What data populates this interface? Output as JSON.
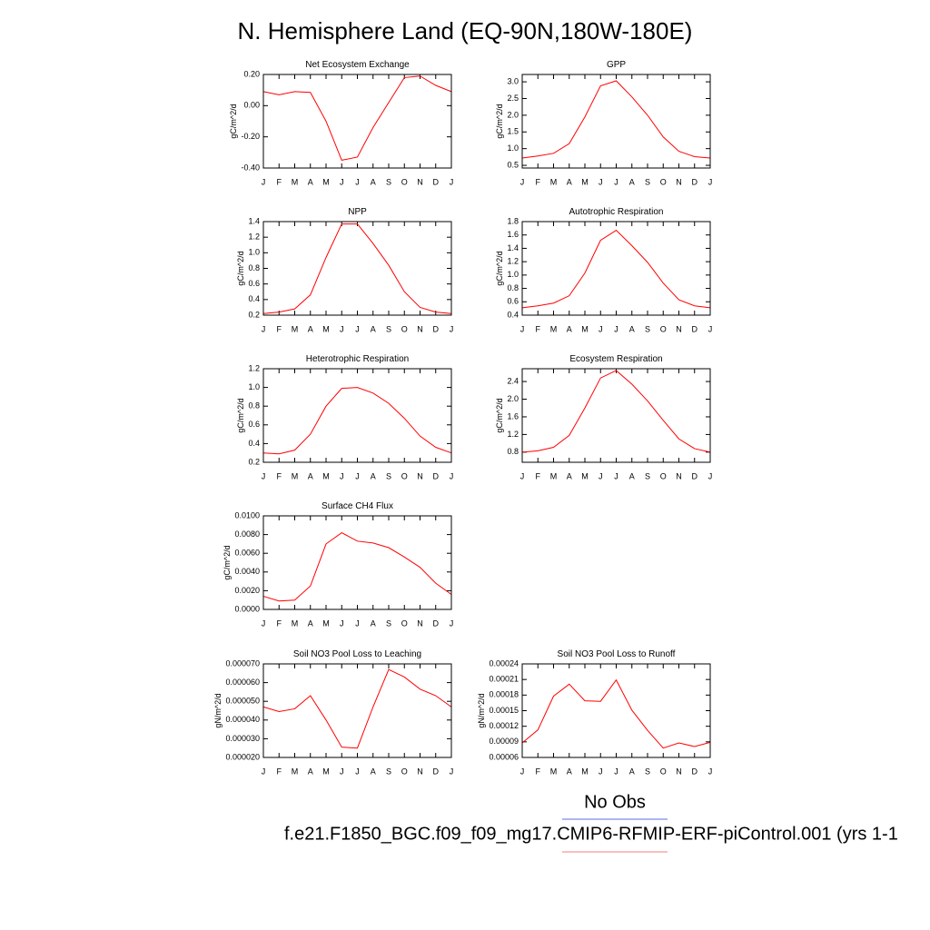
{
  "title": "N. Hemisphere Land (EQ-90N,180W-180E)",
  "legend": [
    {
      "name": "No Obs",
      "color": "#5a6ee8"
    },
    {
      "name": "f.e21.F1850_BGC.f09_f09_mg17.CMIP6-RFMIP-ERF-piControl.001 (yrs 1-1",
      "color": "#f08080"
    }
  ],
  "chart_data": [
    {
      "type": "line",
      "title": "Net Ecosystem Exchange",
      "y_label": "gC/m^2/d",
      "color": "#ff0000",
      "categories": [
        "J",
        "F",
        "M",
        "A",
        "M",
        "J",
        "J",
        "A",
        "S",
        "O",
        "N",
        "D",
        "J"
      ],
      "values": [
        0.09,
        0.07,
        0.09,
        0.085,
        -0.1,
        -0.35,
        -0.33,
        -0.14,
        0.02,
        0.18,
        0.19,
        0.13,
        0.09
      ],
      "ylim": [
        -0.4,
        0.2
      ],
      "yticks": [
        {
          "value": -0.4,
          "label": "-0.40"
        },
        {
          "value": -0.2,
          "label": "-0.20"
        },
        {
          "value": 0,
          "label": "0.00"
        },
        {
          "value": 0.2,
          "label": "0.20"
        }
      ]
    },
    {
      "type": "line",
      "title": "GPP",
      "y_label": "gC/m^2/d",
      "color": "#ff0000",
      "categories": [
        "J",
        "F",
        "M",
        "A",
        "M",
        "J",
        "J",
        "A",
        "S",
        "O",
        "N",
        "D",
        "J"
      ],
      "values": [
        0.72,
        0.78,
        0.86,
        1.15,
        1.95,
        2.88,
        3.03,
        2.55,
        2.0,
        1.35,
        0.92,
        0.76,
        0.72
      ],
      "ylim": [
        0.42,
        3.22
      ],
      "yticks": [
        0.5,
        {
          "value": 1,
          "label": "1.0"
        },
        1.5,
        {
          "value": 2,
          "label": "2.0"
        },
        2.5,
        {
          "value": 3,
          "label": "3.0"
        }
      ]
    },
    {
      "type": "line",
      "title": "NPP",
      "y_label": "gC/m^2/d",
      "color": "#ff0000",
      "categories": [
        "J",
        "F",
        "M",
        "A",
        "M",
        "J",
        "J",
        "A",
        "S",
        "O",
        "N",
        "D",
        "J"
      ],
      "values": [
        0.22,
        0.24,
        0.28,
        0.46,
        0.94,
        1.37,
        1.37,
        1.12,
        0.84,
        0.5,
        0.3,
        0.24,
        0.22
      ],
      "ylim": [
        0.2,
        1.4
      ],
      "yticks": [
        0.2,
        0.4,
        0.6,
        0.8,
        {
          "value": 1,
          "label": "1.0"
        },
        1.2,
        1.4
      ]
    },
    {
      "type": "line",
      "title": "Autotrophic Respiration",
      "y_label": "gC/m^2/d",
      "color": "#ff0000",
      "categories": [
        "J",
        "F",
        "M",
        "A",
        "M",
        "J",
        "J",
        "A",
        "S",
        "O",
        "N",
        "D",
        "J"
      ],
      "values": [
        0.51,
        0.54,
        0.58,
        0.69,
        1.03,
        1.52,
        1.67,
        1.44,
        1.19,
        0.88,
        0.63,
        0.54,
        0.51
      ],
      "ylim": [
        0.4,
        1.8
      ],
      "yticks": [
        0.4,
        0.6,
        0.8,
        {
          "value": 1,
          "label": "1.0"
        },
        1.2,
        1.4,
        1.6,
        1.8
      ]
    },
    {
      "type": "line",
      "title": "Heterotrophic Respiration",
      "y_label": "gC/m^2/d",
      "color": "#ff0000",
      "categories": [
        "J",
        "F",
        "M",
        "A",
        "M",
        "J",
        "J",
        "A",
        "S",
        "O",
        "N",
        "D",
        "J"
      ],
      "values": [
        0.3,
        0.29,
        0.33,
        0.5,
        0.8,
        0.99,
        1.0,
        0.94,
        0.83,
        0.67,
        0.48,
        0.36,
        0.3
      ],
      "ylim": [
        0.2,
        1.2
      ],
      "yticks": [
        0.2,
        0.4,
        0.6,
        0.8,
        {
          "value": 1,
          "label": "1.0"
        },
        1.2
      ]
    },
    {
      "type": "line",
      "title": "Ecosystem Respiration",
      "y_label": "gC/m^2/d",
      "color": "#ff0000",
      "categories": [
        "J",
        "F",
        "M",
        "A",
        "M",
        "J",
        "J",
        "A",
        "S",
        "O",
        "N",
        "D",
        "J"
      ],
      "values": [
        0.8,
        0.83,
        0.91,
        1.18,
        1.8,
        2.48,
        2.65,
        2.34,
        1.96,
        1.52,
        1.1,
        0.88,
        0.8
      ],
      "ylim": [
        0.57,
        2.69
      ],
      "yticks": [
        0.8,
        1.2,
        1.6,
        {
          "value": 2,
          "label": "2.0"
        },
        2.4
      ]
    },
    {
      "type": "line",
      "title": "Surface CH4 Flux",
      "y_label": "gC/m^2/d",
      "color": "#ff0000",
      "categories": [
        "J",
        "F",
        "M",
        "A",
        "M",
        "J",
        "J",
        "A",
        "S",
        "O",
        "N",
        "D",
        "J"
      ],
      "values": [
        0.0014,
        0.0009,
        0.001,
        0.0025,
        0.007,
        0.0082,
        0.0073,
        0.0071,
        0.0066,
        0.0056,
        0.0045,
        0.0028,
        0.0016
      ],
      "ylim": [
        0,
        0.01
      ],
      "yticks": [
        {
          "value": 0,
          "label": "0.0000"
        },
        {
          "value": 0.002,
          "label": "0.0020"
        },
        {
          "value": 0.004,
          "label": "0.0040"
        },
        {
          "value": 0.006,
          "label": "0.0060"
        },
        {
          "value": 0.008,
          "label": "0.0080"
        },
        {
          "value": 0.01,
          "label": "0.0100"
        }
      ]
    },
    {
      "type": "line",
      "title": "Soil NO3 Pool Loss to Leaching",
      "y_label": "gN/m^2/d",
      "color": "#ff0000",
      "categories": [
        "J",
        "F",
        "M",
        "A",
        "M",
        "J",
        "J",
        "A",
        "S",
        "O",
        "N",
        "D",
        "J"
      ],
      "values": [
        4.7e-05,
        4.45e-05,
        4.6e-05,
        5.3e-05,
        4e-05,
        2.55e-05,
        2.5e-05,
        4.7e-05,
        6.7e-05,
        6.3e-05,
        5.65e-05,
        5.3e-05,
        4.7e-05
      ],
      "ylim": [
        2e-05,
        7e-05
      ],
      "yticks": [
        {
          "value": 2e-05,
          "label": "0.000020"
        },
        {
          "value": 3e-05,
          "label": "0.000030"
        },
        {
          "value": 4e-05,
          "label": "0.000040"
        },
        {
          "value": 5e-05,
          "label": "0.000050"
        },
        {
          "value": 6e-05,
          "label": "0.000060"
        },
        {
          "value": 7e-05,
          "label": "0.000070"
        }
      ]
    },
    {
      "type": "line",
      "title": "Soil NO3 Pool Loss to Runoff",
      "y_label": "gN/m^2/d",
      "color": "#ff0000",
      "categories": [
        "J",
        "F",
        "M",
        "A",
        "M",
        "J",
        "J",
        "A",
        "S",
        "O",
        "N",
        "D",
        "J"
      ],
      "values": [
        8.8e-05,
        0.000113,
        0.000178,
        0.000201,
        0.000169,
        0.000168,
        0.000209,
        0.000151,
        0.000112,
        7.8e-05,
        8.8e-05,
        8.1e-05,
        8.9e-05
      ],
      "ylim": [
        6e-05,
        0.00024
      ],
      "yticks": [
        {
          "value": 6e-05,
          "label": "0.00006"
        },
        {
          "value": 9e-05,
          "label": "0.00009"
        },
        {
          "value": 0.00012,
          "label": "0.00012"
        },
        {
          "value": 0.00015,
          "label": "0.00015"
        },
        {
          "value": 0.00018,
          "label": "0.00018"
        },
        {
          "value": 0.00021,
          "label": "0.00021"
        },
        {
          "value": 0.00024,
          "label": "0.00024"
        }
      ]
    }
  ]
}
